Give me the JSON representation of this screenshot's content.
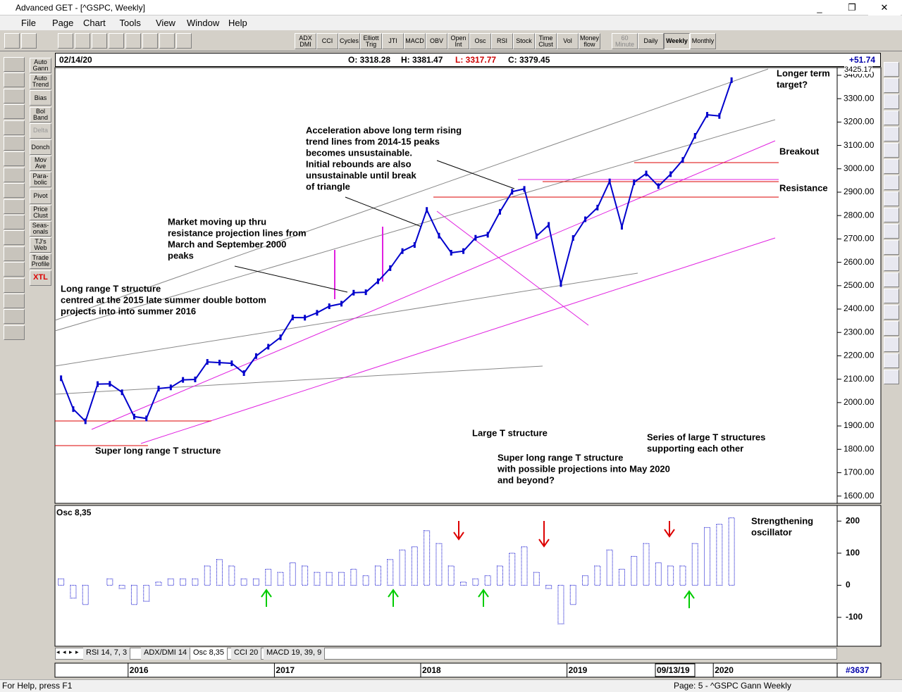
{
  "window": {
    "title": "Advanced GET - [^GSPC, Weekly]"
  },
  "menu": [
    "File",
    "Page",
    "Chart",
    "Tools",
    "View",
    "Window",
    "Help"
  ],
  "indicator_buttons": [
    "ADX DMI",
    "CCI",
    "Cycles",
    "Elliott Trig",
    "JTI",
    "MACD",
    "OBV",
    "Open Int",
    "Osc",
    "RSI",
    "Stock",
    "Time Clust",
    "Vol",
    "Money flow"
  ],
  "period_buttons": [
    "60 Minute",
    "Daily",
    "Weekly",
    "Monthly"
  ],
  "study_buttons": [
    "Auto Gann",
    "Auto Trend",
    "Bias",
    "Bol Band",
    "Delta",
    "Donch",
    "Mov Ave",
    "Para- bolic",
    "Pivot",
    "Price Clust",
    "Seas- onals",
    "TJ's Web",
    "Trade Profile",
    "XTL"
  ],
  "quote": {
    "date": "02/14/20",
    "open": "O: 3318.28",
    "high": "H: 3381.47",
    "low": "L: 3317.77",
    "close": "C: 3379.45",
    "change": "+51.74",
    "last": "3425.17"
  },
  "chart_data": [
    {
      "type": "line",
      "color": "#0000cc",
      "categories": [
        null,
        null,
        null,
        null,
        null,
        null,
        "2016",
        null,
        null,
        null,
        null,
        null,
        null,
        null,
        null,
        null,
        null,
        null,
        "2017",
        null,
        null,
        null,
        null,
        null,
        null,
        null,
        null,
        null,
        null,
        null,
        "2018",
        null,
        null,
        null,
        null,
        null,
        null,
        null,
        null,
        null,
        null,
        null,
        "2019",
        null,
        null,
        null,
        null,
        null,
        null,
        null,
        null,
        null,
        null,
        null,
        "2020",
        null
      ],
      "values": [
        2104,
        1972,
        1920,
        2079,
        2080,
        2044,
        1940,
        1932,
        2060,
        2065,
        2097,
        2099,
        2174,
        2171,
        2168,
        2126,
        2199,
        2239,
        2279,
        2364,
        2363,
        2384,
        2412,
        2423,
        2470,
        2472,
        2519,
        2575,
        2648,
        2674,
        2824,
        2714,
        2641,
        2648,
        2705,
        2718,
        2816,
        2902,
        2914,
        2712,
        2760,
        2507,
        2704,
        2784,
        2834,
        2946,
        2752,
        2942,
        2980,
        2926,
        2977,
        3038,
        3141,
        3231,
        3226,
        3379
      ],
      "ylim": [
        1590,
        3430
      ],
      "yticks": [
        {
          "value": 1600,
          "label": "1600.00"
        },
        {
          "value": 1700,
          "label": "1700.00"
        },
        {
          "value": 1800,
          "label": "1800.00"
        },
        {
          "value": 1900,
          "label": "1900.00"
        },
        {
          "value": 2000,
          "label": "2000.00"
        },
        {
          "value": 2100,
          "label": "2100.00"
        },
        {
          "value": 2200,
          "label": "2200.00"
        },
        {
          "value": 2300,
          "label": "2300.00"
        },
        {
          "value": 2400,
          "label": "2400.00"
        },
        {
          "value": 2500,
          "label": "2500.00"
        },
        {
          "value": 2600,
          "label": "2600.00"
        },
        {
          "value": 2700,
          "label": "2700.00"
        },
        {
          "value": 2800,
          "label": "2800.00"
        },
        {
          "value": 2900,
          "label": "2900.00"
        },
        {
          "value": 3000,
          "label": "3000.00"
        },
        {
          "value": 3100,
          "label": "3100.00"
        },
        {
          "value": 3200,
          "label": "3200.00"
        },
        {
          "value": 3300,
          "label": "3300.00"
        },
        {
          "value": 3400,
          "label": "3400.00"
        }
      ],
      "annotations": [
        [
          "Longer term",
          "target?"
        ],
        [
          "Breakout"
        ],
        [
          "Resistance"
        ],
        [
          "Acceleration above long term rising",
          "trend lines from 2014-15 peaks",
          "becomes unsustainable.",
          "Initial rebounds are also",
          "unsustainable until break",
          "of triangle"
        ],
        [
          "Market moving up thru",
          "resistance projection lines from",
          "March and September 2000",
          "peaks"
        ],
        [
          "Long range T structure",
          "centred at the 2015 late summer double bottom",
          "projects into into summer 2016"
        ],
        [
          "Super long range T structure"
        ],
        [
          "Large T structure"
        ],
        [
          "Series of large T structures",
          "supporting each other"
        ],
        [
          "Super long range T structure",
          "with possible projections into May 2020",
          "and beyond?"
        ]
      ]
    },
    {
      "type": "bar",
      "title": "Osc 8,35",
      "color": "#0000cc",
      "values": [
        20,
        -40,
        -60,
        0,
        20,
        -10,
        -60,
        -50,
        10,
        20,
        20,
        20,
        60,
        80,
        60,
        20,
        20,
        50,
        40,
        70,
        60,
        40,
        40,
        40,
        50,
        30,
        60,
        80,
        110,
        120,
        170,
        130,
        60,
        10,
        20,
        30,
        60,
        100,
        120,
        40,
        -10,
        -120,
        -60,
        30,
        60,
        110,
        50,
        90,
        130,
        70,
        60,
        60,
        130,
        180,
        190,
        210
      ],
      "ylim": [
        -190,
        240
      ],
      "yticks": [
        200,
        100,
        0,
        -100
      ],
      "annotations": [
        [
          "Strengthening",
          "oscillator"
        ]
      ]
    }
  ],
  "tabs": [
    "RSI 14, 7, 3",
    "ADX/DMI 14",
    "Osc 8,35",
    "CCI 20",
    "MACD 19, 39, 9"
  ],
  "cursor_date": "09/13/19",
  "bar_count": "#3637",
  "status": {
    "help": "For Help, press F1",
    "page": "Page: 5 - ^GSPC Gann Weekly"
  }
}
